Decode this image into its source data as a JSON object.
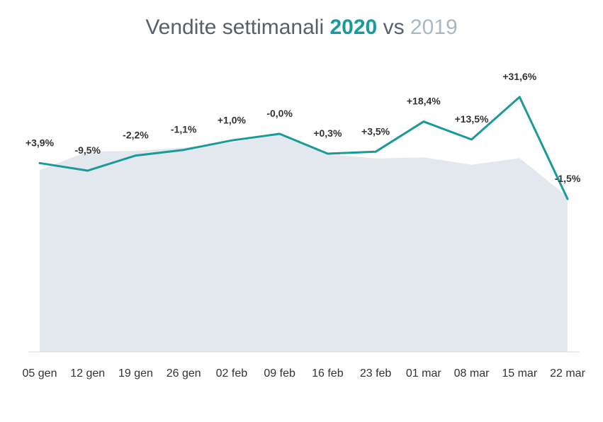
{
  "chart_data": {
    "type": "line",
    "title": {
      "prefix": "Vendite settimanali",
      "year_a": "2020",
      "middle": "vs",
      "year_b": "2019"
    },
    "categories": [
      "05 gen",
      "12 gen",
      "19 gen",
      "26 gen",
      "02 feb",
      "09 feb",
      "16 feb",
      "23 feb",
      "01 mar",
      "08 mar",
      "15 mar",
      "22 mar"
    ],
    "series": [
      {
        "name": "2020",
        "color": "#1a9a9a",
        "values": [
          100.0,
          96.0,
          104.0,
          107.0,
          112.0,
          115.5,
          105.0,
          106.0,
          122.0,
          112.5,
          135.0,
          81.0
        ]
      },
      {
        "name": "2019",
        "color": "#e3e8ef",
        "values": [
          96.3,
          106.1,
          106.4,
          108.2,
          110.9,
          115.5,
          104.7,
          102.4,
          103.0,
          99.1,
          102.6,
          82.2
        ]
      }
    ],
    "data_labels": [
      "+3,9%",
      "-9,5%",
      "-2,2%",
      "-1,1%",
      "+1,0%",
      "-0,0%",
      "+0,3%",
      "+3,5%",
      "+18,4%",
      "+13,5%",
      "+31,6%",
      "-1,5%"
    ],
    "ylim": [
      0,
      150
    ],
    "grid": false,
    "legend": "none"
  }
}
